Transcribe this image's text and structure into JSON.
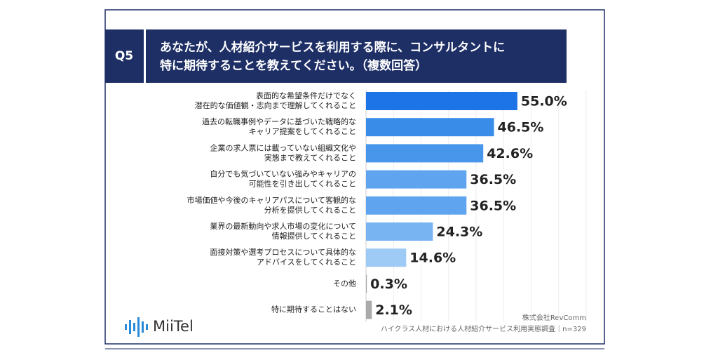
{
  "chart_data": {
    "type": "bar",
    "question_no": "Q5",
    "title": [
      "あなたが、人材紹介サービスを利用する際に、コンサルタントに",
      "特に期待することを教えてください。（複数回答）"
    ],
    "categories": [
      [
        "表面的な希望条件だけでなく",
        "潜在的な価値観・志向まで理解してくれること"
      ],
      [
        "過去の転職事例やデータに基づいた戦略的な",
        "キャリア提案をしてくれること"
      ],
      [
        "企業の求人票には載っていない組織文化や",
        "実態まで教えてくれること"
      ],
      [
        "自分でも気づいていない強みやキャリアの",
        "可能性を引き出してくれること"
      ],
      [
        "市場価値や今後のキャリアパスについて客観的な",
        "分析を提供してくれること"
      ],
      [
        "業界の最新動向や求人市場の変化について",
        "情報提供してくれること"
      ],
      [
        "面接対策や選考プロセスについて具体的な",
        "アドバイスをしてくれること"
      ],
      [
        "その他"
      ],
      [
        "特に期待することはない"
      ]
    ],
    "values": [
      55.0,
      46.5,
      42.6,
      36.5,
      36.5,
      24.3,
      14.6,
      0.3,
      2.1
    ],
    "value_labels": [
      "55.0%",
      "46.5%",
      "42.6%",
      "36.5%",
      "36.5%",
      "24.3%",
      "14.6%",
      "0.3%",
      "2.1%"
    ],
    "colors": [
      "#1d74e6",
      "#3a8ce9",
      "#4896eb",
      "#5ea4ee",
      "#5ea4ee",
      "#78b4f1",
      "#9ecaf6",
      "#aaaaaa",
      "#aaaaaa"
    ],
    "xlim": [
      0,
      80
    ],
    "xticks": [
      0,
      10,
      20,
      30,
      40,
      50,
      60,
      70,
      80
    ],
    "grid": true,
    "logo": "MiiTel",
    "source": [
      "株式会社RevComm",
      "ハイクラス人材における人材紹介サービス利用実態調査｜n=329"
    ]
  }
}
